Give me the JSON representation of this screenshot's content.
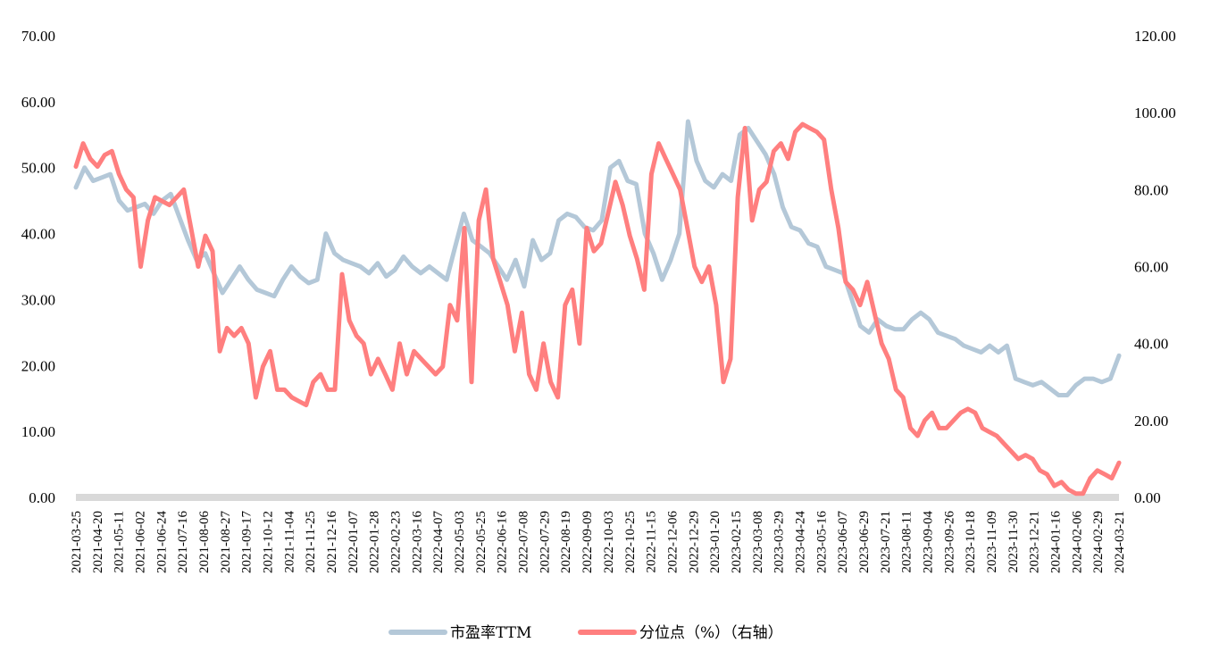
{
  "chart_data": {
    "type": "line",
    "title": "",
    "y_left": {
      "min": 0,
      "max": 70,
      "ticks": [
        "0.00",
        "10.00",
        "20.00",
        "30.00",
        "40.00",
        "50.00",
        "60.00",
        "70.00"
      ]
    },
    "y_right": {
      "min": 0,
      "max": 120,
      "ticks": [
        "0.00",
        "20.00",
        "40.00",
        "60.00",
        "80.00",
        "100.00",
        "120.00"
      ]
    },
    "x_labels": [
      "2021-03-25",
      "2021-04-20",
      "2021-05-11",
      "2021-06-02",
      "2021-06-24",
      "2021-07-16",
      "2021-08-06",
      "2021-08-27",
      "2021-09-17",
      "2021-10-12",
      "2021-11-04",
      "2021-11-25",
      "2021-12-16",
      "2022-01-07",
      "2022-01-28",
      "2022-02-23",
      "2022-03-16",
      "2022-04-07",
      "2022-05-03",
      "2022-05-25",
      "2022-06-16",
      "2022-07-08",
      "2022-07-29",
      "2022-08-19",
      "2022-09-09",
      "2022-10-03",
      "2022-10-25",
      "2022-11-15",
      "2022-12-06",
      "2022-12-29",
      "2023-01-20",
      "2023-02-15",
      "2023-03-08",
      "2023-03-29",
      "2023-04-24",
      "2023-05-16",
      "2023-06-07",
      "2023-06-29",
      "2023-07-21",
      "2023-08-11",
      "2023-09-04",
      "2023-09-26",
      "2023-10-18",
      "2023-11-09",
      "2023-11-30",
      "2023-12-21",
      "2024-01-16",
      "2024-02-06",
      "2024-02-29",
      "2024-03-21"
    ],
    "series": [
      {
        "name": "市盈率TTM",
        "axis": "left",
        "color": "#b4c8d8",
        "values": [
          47,
          50,
          48,
          48.5,
          49,
          45,
          43.5,
          44,
          44.5,
          43,
          45,
          46,
          42.5,
          39,
          36,
          37,
          34,
          31,
          33,
          35,
          33,
          31.5,
          31,
          30.5,
          33,
          35,
          33.5,
          32.5,
          33,
          40,
          37,
          36,
          35.5,
          35,
          34,
          35.5,
          33.5,
          34.5,
          36.5,
          35,
          34,
          35,
          34,
          33,
          38,
          43,
          39,
          38,
          37,
          35,
          33,
          36,
          32,
          39,
          36,
          37,
          42,
          43,
          42.5,
          41,
          40.5,
          42,
          50,
          51,
          48,
          47.5,
          40,
          37,
          33,
          36,
          40,
          57,
          51,
          48,
          47,
          49,
          48,
          55,
          56,
          54,
          52,
          49,
          44,
          41,
          40.5,
          38.5,
          38,
          35,
          34.5,
          34,
          30,
          26,
          25,
          27,
          26,
          25.5,
          25.5,
          27,
          28,
          27,
          25,
          24.5,
          24,
          23,
          22.5,
          22,
          23,
          22,
          23,
          18,
          17.5,
          17,
          17.5,
          16.5,
          15.5,
          15.5,
          17,
          18,
          18,
          17.5,
          18,
          21.5
        ]
      },
      {
        "name": "分位点（%）（右轴）",
        "axis": "right",
        "color": "#ff7f7f",
        "values": [
          86,
          92,
          88,
          86,
          89,
          90,
          84,
          80,
          78,
          60,
          72,
          78,
          77,
          76,
          78,
          80,
          70,
          60,
          68,
          64,
          38,
          44,
          42,
          44,
          40,
          26,
          34,
          38,
          28,
          28,
          26,
          25,
          24,
          30,
          32,
          28,
          28,
          58,
          46,
          42,
          40,
          32,
          36,
          32,
          28,
          40,
          32,
          38,
          36,
          34,
          32,
          34,
          50,
          46,
          70,
          30,
          72,
          80,
          62,
          56,
          50,
          38,
          48,
          32,
          28,
          40,
          30,
          26,
          50,
          54,
          40,
          70,
          64,
          66,
          74,
          82,
          76,
          68,
          62,
          54,
          84,
          92,
          88,
          84,
          80,
          70,
          60,
          56,
          60,
          50,
          30,
          36,
          78,
          96,
          72,
          80,
          82,
          90,
          92,
          88,
          95,
          97,
          96,
          95,
          93,
          80,
          70,
          56,
          54,
          50,
          56,
          48,
          40,
          36,
          28,
          26,
          18,
          16,
          20,
          22,
          18,
          18,
          20,
          22,
          23,
          22,
          18,
          17,
          16,
          14,
          12,
          10,
          11,
          10,
          7,
          6,
          3,
          4,
          2,
          1,
          1,
          5,
          7,
          6,
          5,
          9
        ]
      }
    ],
    "legend_position": "bottom-center",
    "grid": false
  }
}
